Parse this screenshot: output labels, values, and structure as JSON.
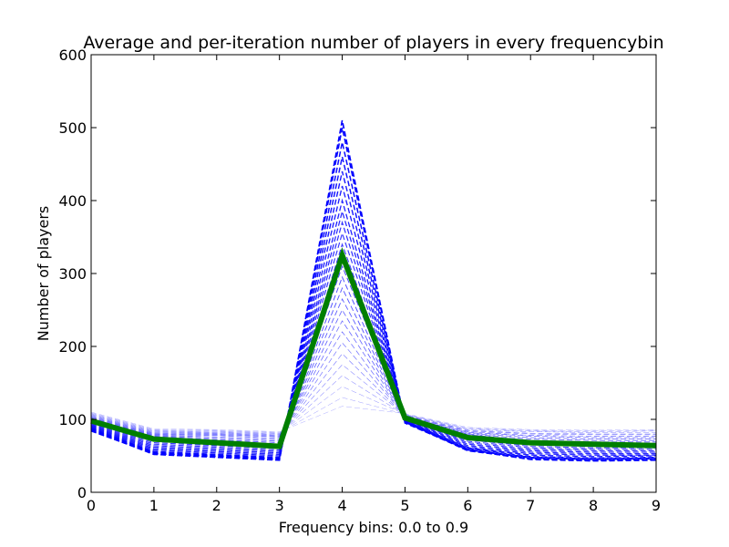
{
  "chart_data": {
    "type": "line",
    "title": "Average and per-iteration number of players in every frequencybin",
    "xlabel": "Frequency bins: 0.0 to 0.9",
    "ylabel": "Number of players",
    "x": [
      0,
      1,
      2,
      3,
      4,
      5,
      6,
      7,
      8,
      9
    ],
    "xlim": [
      0,
      9
    ],
    "ylim": [
      0,
      600
    ],
    "xticks": [
      "0",
      "1",
      "2",
      "3",
      "4",
      "5",
      "6",
      "7",
      "8",
      "9"
    ],
    "yticks": [
      "0",
      "100",
      "200",
      "300",
      "400",
      "500",
      "600"
    ],
    "grid": false,
    "legend": "none",
    "iteration_series": [
      {
        "values": [
          85,
          52,
          48,
          44,
          510,
          95,
          58,
          45,
          43,
          44
        ]
      },
      {
        "values": [
          84,
          53,
          49,
          45,
          500,
          96,
          57,
          46,
          44,
          45
        ]
      },
      {
        "values": [
          86,
          54,
          50,
          46,
          480,
          96,
          58,
          47,
          45,
          46
        ]
      },
      {
        "values": [
          87,
          55,
          51,
          47,
          460,
          97,
          59,
          48,
          46,
          47
        ]
      },
      {
        "values": [
          88,
          56,
          52,
          48,
          440,
          97,
          60,
          49,
          47,
          48
        ]
      },
      {
        "values": [
          89,
          58,
          54,
          50,
          420,
          98,
          61,
          51,
          49,
          50
        ]
      },
      {
        "values": [
          90,
          60,
          56,
          52,
          400,
          98,
          62,
          53,
          51,
          51
        ]
      },
      {
        "values": [
          91,
          62,
          58,
          54,
          385,
          99,
          64,
          55,
          53,
          53
        ]
      },
      {
        "values": [
          92,
          64,
          60,
          56,
          370,
          99,
          66,
          57,
          55,
          55
        ]
      },
      {
        "values": [
          93,
          66,
          62,
          58,
          355,
          100,
          68,
          59,
          57,
          57
        ]
      },
      {
        "values": [
          94,
          68,
          64,
          60,
          340,
          100,
          70,
          61,
          59,
          59
        ]
      },
      {
        "values": [
          96,
          70,
          66,
          62,
          325,
          101,
          72,
          63,
          61,
          61
        ]
      },
      {
        "values": [
          97,
          72,
          68,
          64,
          310,
          101,
          74,
          65,
          63,
          63
        ]
      },
      {
        "values": [
          98,
          74,
          70,
          66,
          295,
          102,
          76,
          67,
          65,
          65
        ]
      },
      {
        "values": [
          99,
          76,
          72,
          68,
          280,
          102,
          78,
          69,
          67,
          67
        ]
      },
      {
        "values": [
          100,
          77,
          74,
          70,
          265,
          103,
          79,
          71,
          69,
          69
        ]
      },
      {
        "values": [
          101,
          78,
          76,
          72,
          250,
          103,
          80,
          73,
          71,
          71
        ]
      },
      {
        "values": [
          102,
          79,
          78,
          74,
          235,
          104,
          81,
          75,
          73,
          73
        ]
      },
      {
        "values": [
          103,
          80,
          79,
          76,
          220,
          104,
          82,
          77,
          75,
          75
        ]
      },
      {
        "values": [
          104,
          81,
          80,
          77,
          205,
          105,
          83,
          78,
          77,
          77
        ]
      },
      {
        "values": [
          105,
          82,
          81,
          78,
          190,
          105,
          84,
          80,
          79,
          79
        ]
      },
      {
        "values": [
          106,
          83,
          82,
          79,
          175,
          106,
          85,
          81,
          80,
          80
        ]
      },
      {
        "values": [
          107,
          84,
          83,
          80,
          160,
          106,
          86,
          83,
          82,
          82
        ]
      },
      {
        "values": [
          108,
          85,
          84,
          81,
          145,
          107,
          87,
          84,
          83,
          84
        ]
      },
      {
        "values": [
          109,
          86,
          85,
          82,
          130,
          107,
          88,
          85,
          84,
          85
        ]
      },
      {
        "values": [
          110,
          87,
          86,
          83,
          118,
          108,
          89,
          86,
          85,
          86
        ]
      }
    ],
    "average_series": {
      "values": [
        98,
        73,
        68,
        63,
        325,
        102,
        75,
        68,
        66,
        64
      ],
      "color": "#007f00"
    },
    "iteration_color": "#0000ff"
  }
}
